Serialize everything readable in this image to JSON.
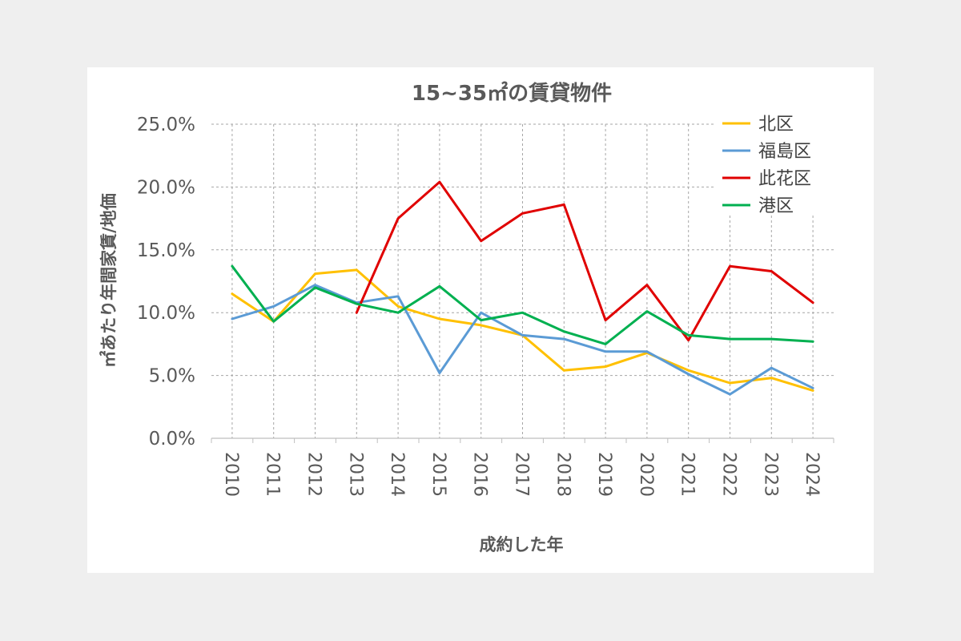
{
  "chart_data": {
    "type": "line",
    "title": "15~35㎡の賃貸物件",
    "xlabel": "成約した年",
    "ylabel": "㎡あたり年間家賃/地価",
    "ylim": [
      0,
      25
    ],
    "y_tick_labels": [
      "0.0%",
      "5.0%",
      "10.0%",
      "15.0%",
      "20.0%",
      "25.0%"
    ],
    "categories": [
      "2010",
      "2011",
      "2012",
      "2013",
      "2014",
      "2015",
      "2016",
      "2017",
      "2018",
      "2019",
      "2020",
      "2021",
      "2022",
      "2023",
      "2024"
    ],
    "grid": true,
    "legend_position": "top-right",
    "series": [
      {
        "name": "北区",
        "color": "#FFC000",
        "values": [
          11.5,
          9.3,
          13.1,
          13.4,
          10.5,
          9.5,
          9.0,
          8.2,
          5.4,
          5.7,
          6.8,
          5.4,
          4.4,
          4.8,
          3.8
        ]
      },
      {
        "name": "福島区",
        "color": "#5B9BD5",
        "values": [
          9.5,
          10.5,
          12.2,
          10.8,
          11.3,
          5.2,
          10.0,
          8.2,
          7.9,
          6.9,
          6.9,
          5.1,
          3.5,
          5.6,
          4.0
        ]
      },
      {
        "name": "此花区",
        "color": "#E00000",
        "values": [
          null,
          null,
          null,
          10.0,
          17.5,
          20.4,
          15.7,
          17.9,
          18.6,
          9.4,
          12.2,
          7.8,
          13.7,
          13.3,
          10.8
        ]
      },
      {
        "name": "港区",
        "color": "#00B050",
        "values": [
          13.7,
          9.3,
          12.0,
          10.7,
          10.0,
          12.1,
          9.4,
          10.0,
          8.5,
          7.5,
          10.1,
          8.2,
          7.9,
          7.9,
          7.7
        ]
      }
    ]
  }
}
